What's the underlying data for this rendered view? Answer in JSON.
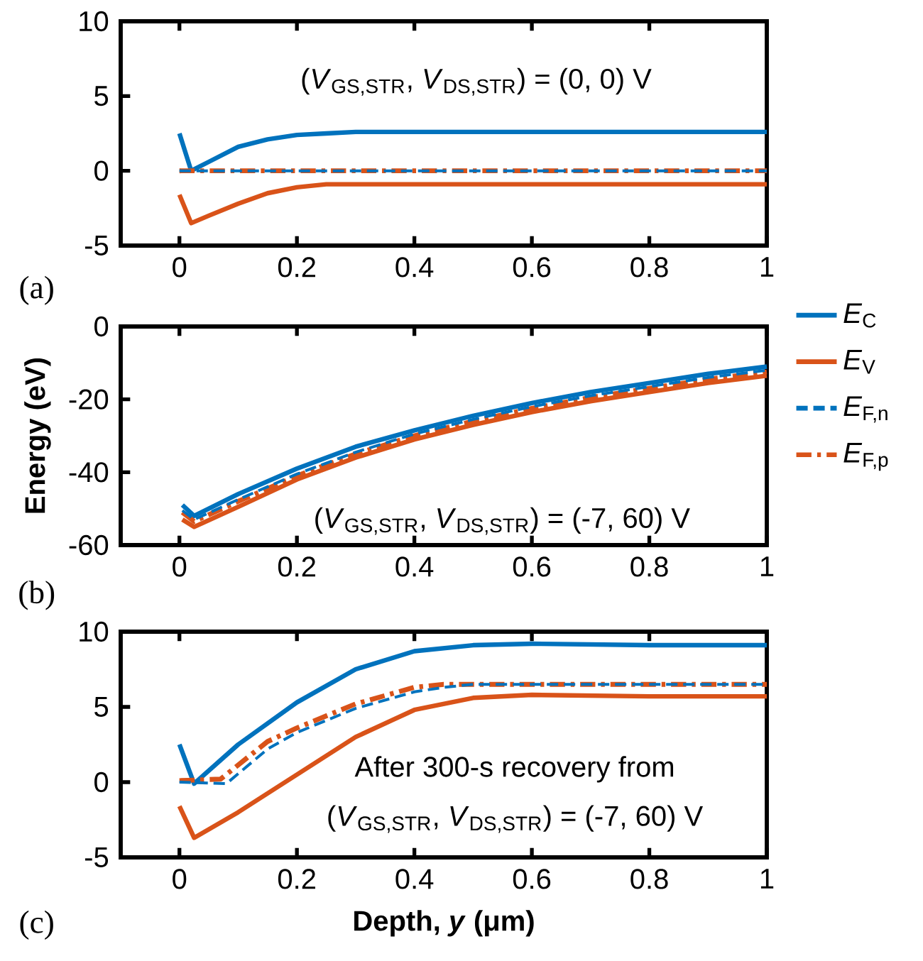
{
  "chart_data": [
    {
      "type": "line",
      "xlim": [
        -0.1,
        1
      ],
      "xticks": [
        0,
        0.2,
        0.4,
        0.6,
        0.8,
        1
      ],
      "ylim": [
        -5,
        10
      ],
      "yticks": [
        -5,
        0,
        5,
        10
      ],
      "grid": false,
      "legend": false,
      "annotations": [
        "(a)",
        "(*V*$_{GS,STR}$, *V*$_{DS,STR}$) = (0, 0) V"
      ],
      "series": [
        {
          "color": "#0072bd",
          "line_style": "solid",
          "x": [
            0,
            0.02,
            0.05,
            0.1,
            0.15,
            0.2,
            0.25,
            0.3,
            0.5,
            1
          ],
          "values": [
            2.5,
            0,
            0.6,
            1.6,
            2.1,
            2.4,
            2.5,
            2.6,
            2.6,
            2.6
          ]
        },
        {
          "color": "#d95319",
          "line_style": "solid",
          "x": [
            0,
            0.02,
            0.05,
            0.1,
            0.15,
            0.2,
            0.25,
            0.3,
            0.5,
            1
          ],
          "values": [
            -1.6,
            -3.5,
            -3.0,
            -2.2,
            -1.5,
            -1.1,
            -0.9,
            -0.9,
            -0.9,
            -0.9
          ]
        },
        {
          "color": "#0072bd",
          "line_style": "dashed",
          "x": [
            0,
            1
          ],
          "values": [
            0,
            0
          ]
        },
        {
          "color": "#d95319",
          "line_style": "dashdot",
          "x": [
            0,
            1
          ],
          "values": [
            0,
            0
          ]
        }
      ]
    },
    {
      "type": "line",
      "xlim": [
        -0.1,
        1
      ],
      "xticks": [
        0,
        0.2,
        0.4,
        0.6,
        0.8,
        1
      ],
      "ylim": [
        -60,
        0
      ],
      "yticks": [
        -60,
        -40,
        -20,
        0
      ],
      "ylabel": "Energy (eV)",
      "grid": false,
      "legend": "right",
      "annotations": [
        "(b)",
        "(*V*$_{GS,STR}$, *V*$_{DS,STR}$) = (-7, 60) V"
      ],
      "series": [
        {
          "name": "*E*$_{C}$",
          "color": "#0072bd",
          "line_style": "solid",
          "x": [
            0.005,
            0.025,
            0.1,
            0.2,
            0.3,
            0.4,
            0.5,
            0.6,
            0.7,
            0.8,
            0.9,
            1
          ],
          "values": [
            -49,
            -52,
            -46,
            -39,
            -33,
            -28.5,
            -24.5,
            -21,
            -18,
            -15.5,
            -13,
            -11
          ]
        },
        {
          "name": "*E*$_{V}$",
          "color": "#d95319",
          "line_style": "solid",
          "x": [
            0.005,
            0.025,
            0.1,
            0.2,
            0.3,
            0.4,
            0.5,
            0.6,
            0.7,
            0.8,
            0.9,
            1
          ],
          "values": [
            -53,
            -55,
            -49.5,
            -42,
            -36,
            -31,
            -27,
            -23.5,
            -20.5,
            -18,
            -15.5,
            -13.5
          ]
        },
        {
          "name": "*E*$_{F,n}$",
          "color": "#0072bd",
          "line_style": "dashed",
          "x": [
            0.005,
            0.025,
            0.1,
            0.2,
            0.3,
            0.4,
            0.5,
            0.6,
            0.7,
            0.8,
            0.9,
            1
          ],
          "values": [
            -50.5,
            -53,
            -47.5,
            -40.5,
            -34.5,
            -29.5,
            -25.5,
            -22,
            -19,
            -16.5,
            -14,
            -12
          ]
        },
        {
          "name": "*E*$_{F,p}$",
          "color": "#d95319",
          "line_style": "dashdot",
          "x": [
            0.005,
            0.025,
            0.1,
            0.2,
            0.3,
            0.4,
            0.5,
            0.6,
            0.7,
            0.8,
            0.9,
            1
          ],
          "values": [
            -51,
            -53.5,
            -48,
            -41,
            -35,
            -30,
            -26,
            -22.5,
            -19.5,
            -17,
            -14.5,
            -12.5
          ]
        }
      ]
    },
    {
      "type": "line",
      "xlim": [
        -0.1,
        1
      ],
      "xticks": [
        0,
        0.2,
        0.4,
        0.6,
        0.8,
        1
      ],
      "ylim": [
        -5,
        10
      ],
      "yticks": [
        -5,
        0,
        5,
        10
      ],
      "xlabel": "Depth, *y* (μm)",
      "grid": false,
      "legend": false,
      "annotations": [
        "(c)",
        "After 300-s recovery from",
        "(*V*$_{GS,STR}$, *V*$_{DS,STR}$) = (-7, 60) V"
      ],
      "series": [
        {
          "color": "#0072bd",
          "line_style": "solid",
          "x": [
            0,
            0.025,
            0.1,
            0.2,
            0.3,
            0.4,
            0.5,
            0.6,
            0.8,
            1
          ],
          "values": [
            2.5,
            -0.1,
            2.5,
            5.3,
            7.5,
            8.7,
            9.1,
            9.2,
            9.1,
            9.1
          ]
        },
        {
          "color": "#d95319",
          "line_style": "solid",
          "x": [
            0,
            0.025,
            0.1,
            0.2,
            0.3,
            0.4,
            0.5,
            0.6,
            0.8,
            1
          ],
          "values": [
            -1.6,
            -3.7,
            -2,
            0.5,
            3,
            4.8,
            5.6,
            5.8,
            5.7,
            5.7
          ]
        },
        {
          "color": "#0072bd",
          "line_style": "dashed",
          "x": [
            0,
            0.08,
            0.15,
            0.2,
            0.3,
            0.4,
            0.45,
            0.5,
            1
          ],
          "values": [
            0,
            -0.1,
            2.2,
            3.3,
            4.9,
            6,
            6.3,
            6.5,
            6.5
          ]
        },
        {
          "color": "#d95319",
          "line_style": "dashdot",
          "x": [
            0,
            0.07,
            0.15,
            0.2,
            0.3,
            0.4,
            0.45,
            1
          ],
          "values": [
            0.1,
            0.2,
            2.7,
            3.6,
            5.2,
            6.3,
            6.5,
            6.5
          ]
        }
      ]
    }
  ]
}
